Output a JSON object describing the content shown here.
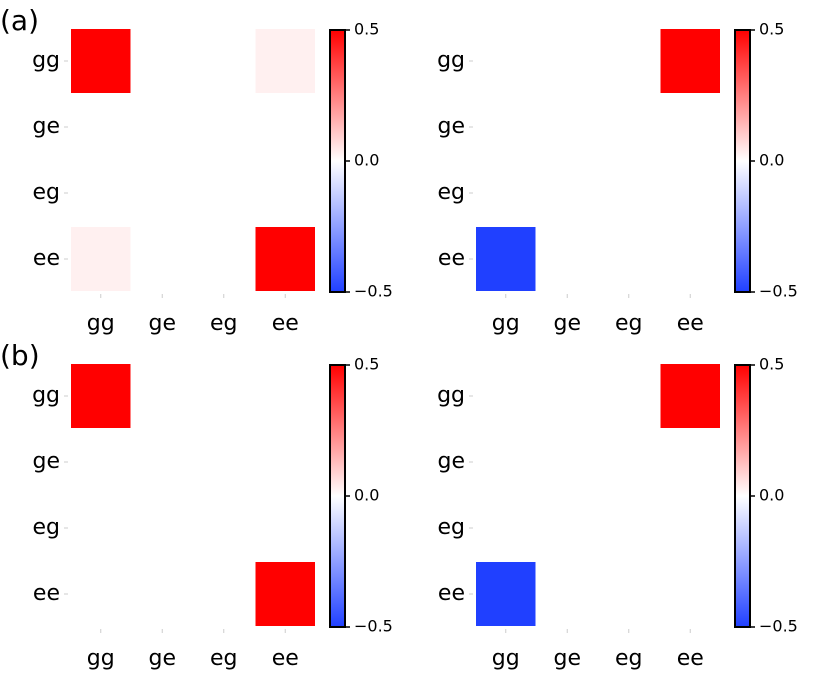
{
  "chart_data": [
    {
      "type": "heatmap",
      "label": "(a)",
      "x": [
        "gg",
        "ge",
        "eg",
        "ee"
      ],
      "y": [
        "gg",
        "ge",
        "eg",
        "ee"
      ],
      "values": [
        [
          0.5,
          0,
          0,
          0.03
        ],
        [
          0,
          0,
          0,
          0
        ],
        [
          0,
          0,
          0,
          0
        ],
        [
          0.03,
          0,
          0,
          0.5
        ]
      ],
      "clim": [
        -0.5,
        0.5
      ],
      "cticks": [
        {
          "value": -0.5,
          "label": "−0.5"
        },
        {
          "value": 0,
          "label": "0.0"
        },
        0.5
      ],
      "colormap": [
        "#2040ff",
        "#ffffff",
        "#ff0000"
      ]
    },
    {
      "type": "heatmap",
      "x": [
        "gg",
        "ge",
        "eg",
        "ee"
      ],
      "y": [
        "gg",
        "ge",
        "eg",
        "ee"
      ],
      "values": [
        [
          0,
          0,
          0,
          0.5
        ],
        [
          0,
          0,
          0,
          0
        ],
        [
          0,
          0,
          0,
          0
        ],
        [
          -0.5,
          0,
          0,
          0
        ]
      ],
      "clim": [
        -0.5,
        0.5
      ],
      "cticks": [
        {
          "value": -0.5,
          "label": "−0.5"
        },
        {
          "value": 0,
          "label": "0.0"
        },
        0.5
      ],
      "colormap": [
        "#2040ff",
        "#ffffff",
        "#ff0000"
      ]
    },
    {
      "type": "heatmap",
      "label": "(b)",
      "x": [
        "gg",
        "ge",
        "eg",
        "ee"
      ],
      "y": [
        "gg",
        "ge",
        "eg",
        "ee"
      ],
      "values": [
        [
          0.5,
          0,
          0,
          0
        ],
        [
          0,
          0,
          0,
          0
        ],
        [
          0,
          0,
          0,
          0
        ],
        [
          0,
          0,
          0,
          0.5
        ]
      ],
      "clim": [
        -0.5,
        0.5
      ],
      "cticks": [
        {
          "value": -0.5,
          "label": "−0.5"
        },
        {
          "value": 0,
          "label": "0.0"
        },
        0.5
      ],
      "colormap": [
        "#2040ff",
        "#ffffff",
        "#ff0000"
      ]
    },
    {
      "type": "heatmap",
      "x": [
        "gg",
        "ge",
        "eg",
        "ee"
      ],
      "y": [
        "gg",
        "ge",
        "eg",
        "ee"
      ],
      "values": [
        [
          0,
          0,
          0,
          0.5
        ],
        [
          0,
          0,
          0,
          0
        ],
        [
          0,
          0,
          0,
          0
        ],
        [
          -0.5,
          0,
          0,
          0
        ]
      ],
      "clim": [
        -0.5,
        0.5
      ],
      "cticks": [
        {
          "value": -0.5,
          "label": "−0.5"
        },
        {
          "value": 0,
          "label": "0.0"
        },
        0.5
      ],
      "colormap": [
        "#2040ff",
        "#ffffff",
        "#ff0000"
      ]
    }
  ]
}
